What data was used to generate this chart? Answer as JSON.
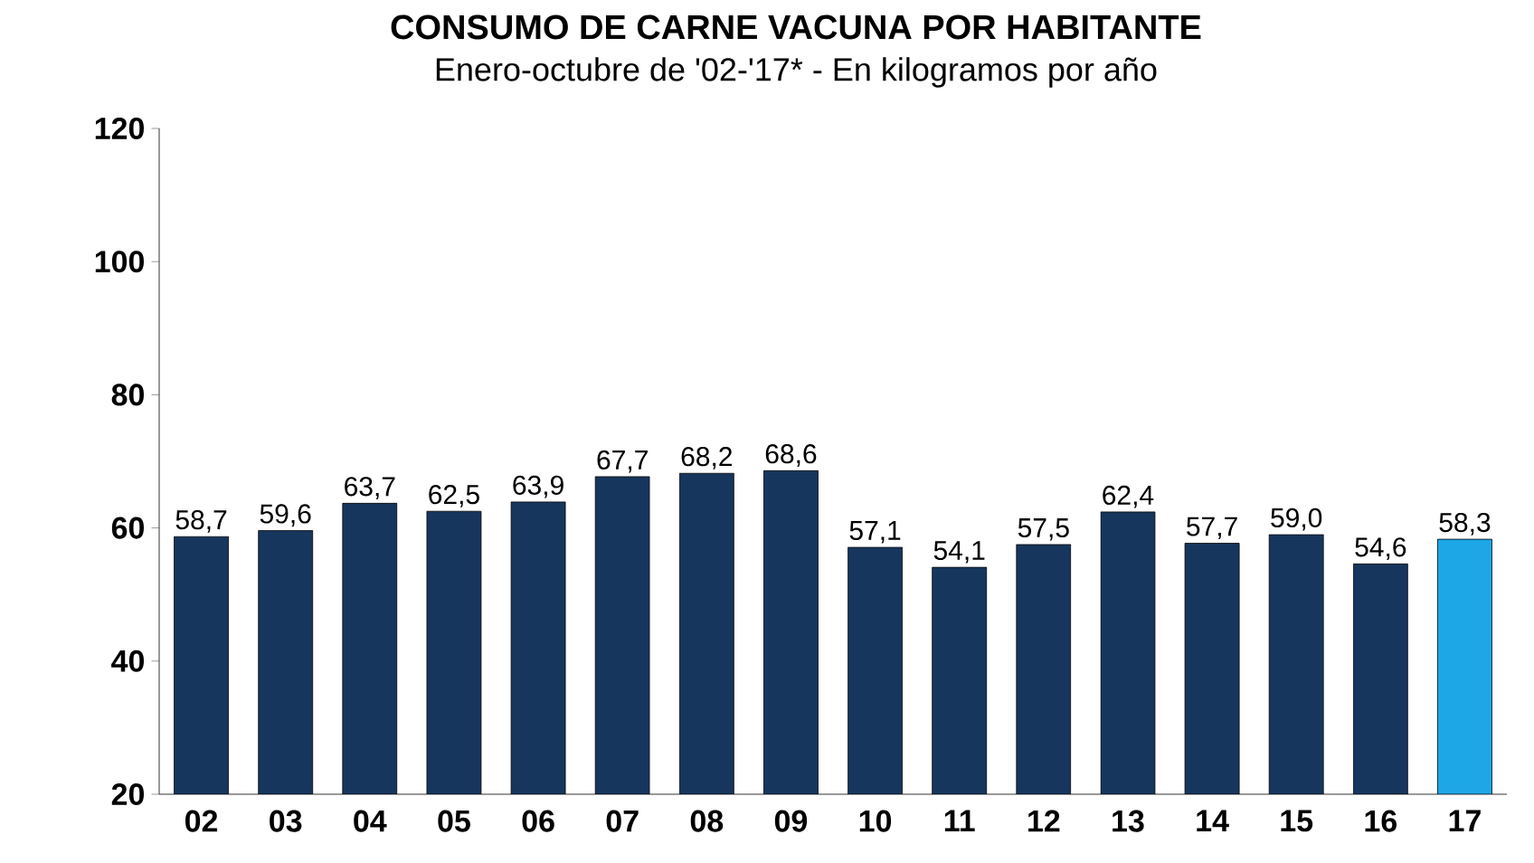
{
  "chart_data": {
    "type": "bar",
    "title": "CONSUMO DE CARNE VACUNA POR HABITANTE",
    "subtitle": "Enero-octubre de '02-'17* - En kilogramos por año",
    "categories": [
      "02",
      "03",
      "04",
      "05",
      "06",
      "07",
      "08",
      "09",
      "10",
      "11",
      "12",
      "13",
      "14",
      "15",
      "16",
      "17"
    ],
    "values": [
      58.7,
      59.6,
      63.7,
      62.5,
      63.9,
      67.7,
      68.2,
      68.6,
      57.1,
      54.1,
      57.5,
      62.4,
      57.7,
      59.0,
      54.6,
      58.3
    ],
    "value_labels": [
      "58,7",
      "59,6",
      "63,7",
      "62,5",
      "63,9",
      "67,7",
      "68,2",
      "68,6",
      "57,1",
      "54,1",
      "57,5",
      "62,4",
      "57,7",
      "59,0",
      "54,6",
      "58,3"
    ],
    "colors": [
      "#17365d",
      "#17365d",
      "#17365d",
      "#17365d",
      "#17365d",
      "#17365d",
      "#17365d",
      "#17365d",
      "#17365d",
      "#17365d",
      "#17365d",
      "#17365d",
      "#17365d",
      "#17365d",
      "#17365d",
      "#1ea7e6"
    ],
    "ylim": [
      20,
      120
    ],
    "yticks": [
      20,
      40,
      60,
      80,
      100,
      120
    ]
  }
}
